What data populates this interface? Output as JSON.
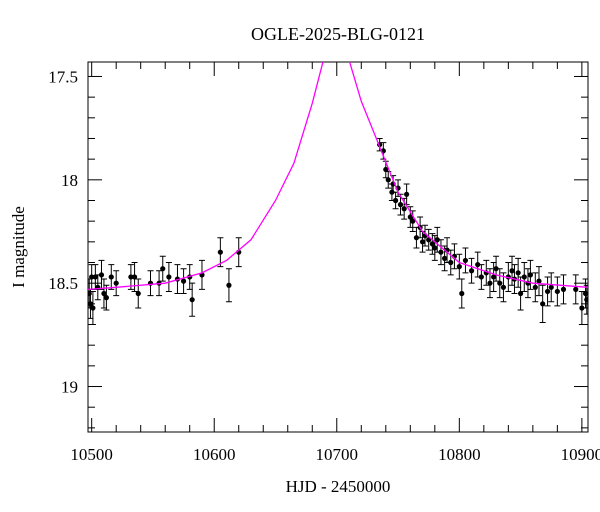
{
  "chart_data": {
    "type": "scatter",
    "title": "OGLE-2025-BLG-0121",
    "x_label": "HJD - 2450000",
    "y_label": "I magnitude",
    "xlim": [
      10497,
      10905
    ],
    "ylim": [
      17.43,
      19.22
    ],
    "y_inverted": true,
    "xticks": [
      10500,
      10600,
      10700,
      10800,
      10900
    ],
    "xminorticks": [
      10520,
      10540,
      10560,
      10580,
      10620,
      10640,
      10660,
      10680,
      10720,
      10740,
      10760,
      10780,
      10820,
      10840,
      10860,
      10880
    ],
    "yticks": [
      17.5,
      18,
      18.5,
      19
    ],
    "yminorticks": [
      17.6,
      17.7,
      17.8,
      17.9,
      18.1,
      18.2,
      18.3,
      18.4,
      18.6,
      18.7,
      18.8,
      18.9,
      19.1,
      19.2
    ],
    "series": [
      {
        "kind": "points",
        "color": "#000000",
        "x": [
          10498,
          10499,
          10500,
          10501,
          10503,
          10505,
          10508,
          10510,
          10512,
          10516,
          10520,
          10532,
          10535,
          10538,
          10548,
          10555,
          10558,
          10563,
          10570,
          10575,
          10580,
          10582,
          10590,
          10605,
          10612,
          10620,
          10735,
          10738,
          10740,
          10742,
          10745,
          10746,
          10748,
          10750,
          10752,
          10755,
          10757,
          10760,
          10762,
          10765,
          10768,
          10770,
          10772,
          10775,
          10778,
          10780,
          10782,
          10785,
          10788,
          10790,
          10793,
          10796,
          10800,
          10802,
          10805,
          10810,
          10815,
          10818,
          10822,
          10825,
          10828,
          10830,
          10833,
          10836,
          10840,
          10843,
          10845,
          10848,
          10850,
          10853,
          10856,
          10858,
          10862,
          10865,
          10868,
          10872,
          10875,
          10880,
          10885,
          10895,
          10900,
          10903,
          10904
        ],
        "values": [
          18.55,
          18.6,
          18.47,
          18.62,
          18.47,
          18.52,
          18.46,
          18.55,
          18.57,
          18.47,
          18.5,
          18.47,
          18.47,
          18.55,
          18.5,
          18.5,
          18.43,
          18.47,
          18.48,
          18.49,
          18.47,
          18.58,
          18.46,
          18.35,
          18.51,
          18.35,
          17.83,
          17.86,
          17.95,
          18.0,
          18.06,
          18.02,
          18.1,
          18.04,
          18.12,
          18.14,
          18.07,
          18.18,
          18.2,
          18.28,
          18.23,
          18.3,
          18.27,
          18.29,
          18.31,
          18.33,
          18.29,
          18.35,
          18.38,
          18.34,
          18.4,
          18.37,
          18.42,
          18.55,
          18.39,
          18.44,
          18.41,
          18.47,
          18.45,
          18.5,
          18.47,
          18.43,
          18.5,
          18.52,
          18.47,
          18.44,
          18.48,
          18.45,
          18.55,
          18.47,
          18.5,
          18.46,
          18.52,
          18.49,
          18.6,
          18.54,
          18.52,
          18.54,
          18.53,
          18.53,
          18.62,
          18.55,
          18.58
        ],
        "errors": [
          0.07,
          0.07,
          0.06,
          0.08,
          0.06,
          0.06,
          0.07,
          0.07,
          0.06,
          0.06,
          0.06,
          0.06,
          0.07,
          0.07,
          0.06,
          0.06,
          0.06,
          0.07,
          0.07,
          0.06,
          0.06,
          0.08,
          0.07,
          0.07,
          0.08,
          0.07,
          0.03,
          0.04,
          0.04,
          0.04,
          0.04,
          0.04,
          0.04,
          0.04,
          0.05,
          0.05,
          0.05,
          0.05,
          0.05,
          0.05,
          0.05,
          0.05,
          0.05,
          0.05,
          0.05,
          0.06,
          0.06,
          0.06,
          0.06,
          0.06,
          0.06,
          0.06,
          0.06,
          0.07,
          0.06,
          0.06,
          0.06,
          0.06,
          0.06,
          0.07,
          0.07,
          0.06,
          0.07,
          0.07,
          0.07,
          0.07,
          0.07,
          0.07,
          0.08,
          0.07,
          0.07,
          0.07,
          0.07,
          0.07,
          0.09,
          0.07,
          0.07,
          0.07,
          0.07,
          0.07,
          0.08,
          0.07,
          0.07
        ]
      },
      {
        "kind": "line",
        "color": "#ff00ff",
        "x": [
          10497,
          10520,
          10560,
          10590,
          10610,
          10630,
          10650,
          10665,
          10680,
          10690,
          10700,
          10710,
          10720,
          10735,
          10750,
          10770,
          10800,
          10830,
          10860,
          10905
        ],
        "values": [
          18.53,
          18.52,
          18.5,
          18.45,
          18.39,
          18.29,
          18.1,
          17.92,
          17.63,
          17.4,
          17.25,
          17.42,
          17.62,
          17.84,
          18.06,
          18.25,
          18.4,
          18.46,
          18.5,
          18.52
        ]
      }
    ]
  }
}
